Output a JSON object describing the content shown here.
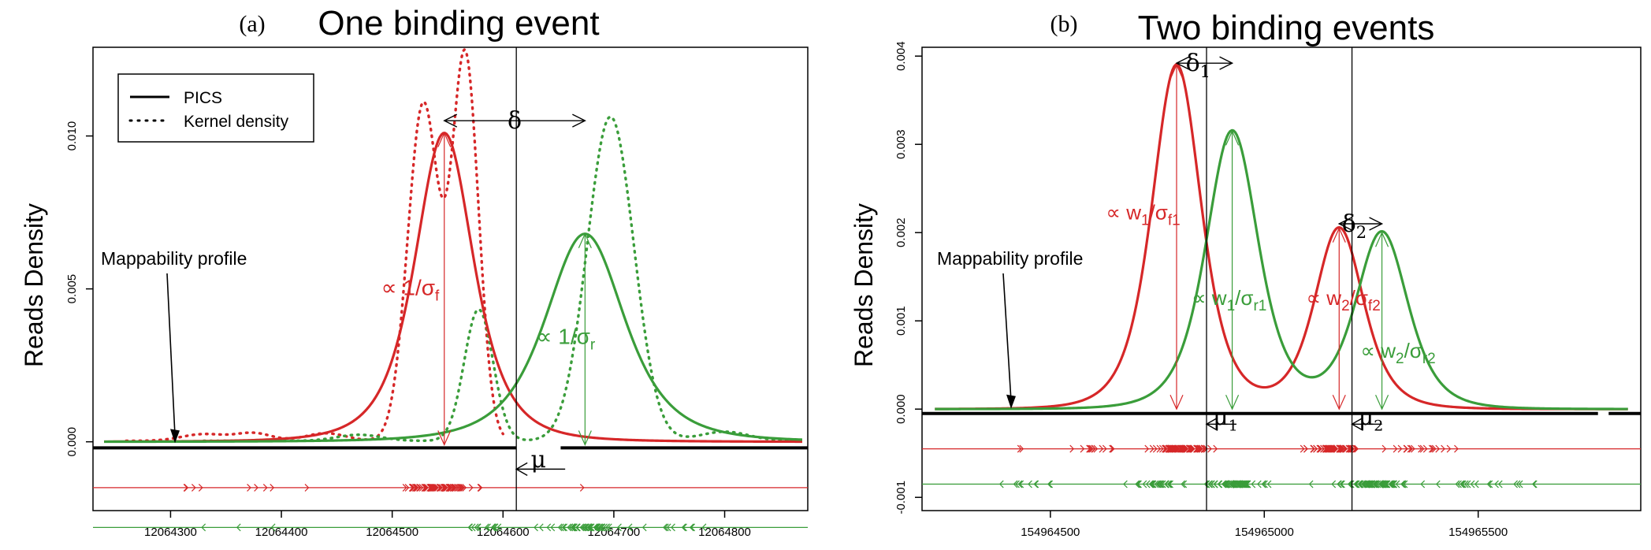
{
  "colors": {
    "forward": "#d62728",
    "reverse": "#3a9d3a",
    "axis": "#000000"
  },
  "chart_data": [
    {
      "type": "line",
      "panel_label": "(a)",
      "title": "One binding event",
      "ylabel": "Reads Density",
      "xlim": [
        12064230,
        12064875
      ],
      "ylim": [
        -0.00225,
        0.0129
      ],
      "xticks": [
        12064300,
        12064400,
        12064500,
        12064600,
        12064700,
        12064800
      ],
      "xtick_labels": [
        "12064300",
        "12064400",
        "12064500",
        "12064600",
        "12064700",
        "12064800"
      ],
      "yticks": [
        0.0,
        0.005,
        0.01
      ],
      "ytick_labels": [
        "0.000",
        "0.005",
        "0.010"
      ],
      "legend": {
        "position": "top-left",
        "entries": [
          {
            "label": "PICS",
            "style": "solid"
          },
          {
            "label": "Kernel density",
            "style": "dotted"
          }
        ]
      },
      "mu": 12064612,
      "pics_forward": {
        "x0": 12064240,
        "x1": 12064870,
        "components": [
          {
            "mu": 12064547,
            "peak": 0.0101,
            "scale": 28,
            "nu": 3
          }
        ]
      },
      "pics_reverse": {
        "x0": 12064240,
        "x1": 12064870,
        "components": [
          {
            "mu": 12064674,
            "peak": 0.0068,
            "scale": 38,
            "nu": 3
          }
        ]
      },
      "kernel_forward": {
        "x0": 12064260,
        "x1": 12064600,
        "bumps": [
          {
            "mu": 12064528,
            "peak": 0.011,
            "sd": 14
          },
          {
            "mu": 12064566,
            "peak": 0.0125,
            "sd": 12
          },
          {
            "mu": 12064330,
            "peak": 0.00022,
            "sd": 20
          },
          {
            "mu": 12064375,
            "peak": 0.00025,
            "sd": 16
          },
          {
            "mu": 12064440,
            "peak": 0.00025,
            "sd": 18
          }
        ]
      },
      "kernel_reverse": {
        "x0": 12064330,
        "x1": 12064870,
        "bumps": [
          {
            "mu": 12064578,
            "peak": 0.0043,
            "sd": 13
          },
          {
            "mu": 12064697,
            "peak": 0.0106,
            "sd": 21
          },
          {
            "mu": 12064470,
            "peak": 0.0002,
            "sd": 20
          },
          {
            "mu": 12064800,
            "peak": 0.0003,
            "sd": 22
          }
        ]
      },
      "mappability": {
        "y": -0.0002,
        "segments": [
          [
            12064230,
            12064612
          ],
          [
            12064652,
            12064875
          ]
        ],
        "label": "Mappability profile"
      },
      "forward_reads": {
        "y": -0.0015,
        "clusters": [
          {
            "center": 12064320,
            "spread": 22,
            "n": 4
          },
          {
            "center": 12064400,
            "spread": 28,
            "n": 5
          },
          {
            "center": 12064540,
            "spread": 28,
            "n": 70
          },
          {
            "center": 12064670,
            "spread": 4,
            "n": 1
          }
        ]
      },
      "reverse_reads": {
        "y": -0.0028,
        "clusters": [
          {
            "center": 12064360,
            "spread": 40,
            "n": 3
          },
          {
            "center": 12064585,
            "spread": 22,
            "n": 14
          },
          {
            "center": 12064675,
            "spread": 32,
            "n": 55
          },
          {
            "center": 12064760,
            "spread": 28,
            "n": 10
          }
        ]
      },
      "arrows": [
        {
          "x": 12064547,
          "from": 0.0101,
          "to": -0.0001,
          "color": "forward"
        },
        {
          "x": 12064674,
          "from": 0.0068,
          "to": -0.0001,
          "color": "reverse"
        }
      ],
      "delta": {
        "label": "δ",
        "from": 12064547,
        "to": 12064674,
        "y": 0.0105
      },
      "annotations": [
        {
          "text": "∝ 1/σ",
          "sub": "f",
          "x": 12064490,
          "y": 0.0048,
          "color": "forward",
          "class": "ann"
        },
        {
          "text": "∝ 1/σ",
          "sub": "r",
          "x": 12064630,
          "y": 0.0032,
          "color": "reverse",
          "class": "ann"
        },
        {
          "text": "μ",
          "x": 12064625,
          "y": -0.00085,
          "color": "axis",
          "class": "greek"
        }
      ]
    },
    {
      "type": "line",
      "panel_label": "(b)",
      "title": "Two binding events",
      "ylabel": "Reads Density",
      "xlim": [
        154964200,
        154965880
      ],
      "ylim": [
        -0.00115,
        0.0041
      ],
      "xticks": [
        154964500,
        154965000,
        154965500
      ],
      "xtick_labels": [
        "154964500",
        "154965000",
        "154965500"
      ],
      "yticks": [
        -0.001,
        0.0,
        0.001,
        0.002,
        0.003,
        0.004
      ],
      "ytick_labels": [
        "-0.001",
        "0.000",
        "0.001",
        "0.002",
        "0.003",
        "0.004"
      ],
      "mu": [
        154964865,
        154965205
      ],
      "pics_forward": {
        "x0": 154964230,
        "x1": 154965850,
        "components": [
          {
            "mu": 154964795,
            "peak": 0.0039,
            "scale": 60,
            "nu": 4
          },
          {
            "mu": 154965175,
            "peak": 0.00205,
            "scale": 60,
            "nu": 4
          }
        ]
      },
      "pics_reverse": {
        "x0": 154964230,
        "x1": 154965850,
        "components": [
          {
            "mu": 154964925,
            "peak": 0.00315,
            "scale": 64,
            "nu": 4
          },
          {
            "mu": 154965275,
            "peak": 0.002,
            "scale": 64,
            "nu": 4
          }
        ]
      },
      "mappability": {
        "y": -5e-05,
        "segments": [
          [
            154964200,
            154965780
          ],
          [
            154965805,
            154965880
          ]
        ],
        "label": "Mappability profile"
      },
      "forward_reads": {
        "y": -0.00045,
        "clusters": [
          {
            "center": 154964450,
            "spread": 30,
            "n": 2
          },
          {
            "center": 154964640,
            "spread": 80,
            "n": 16
          },
          {
            "center": 154964810,
            "spread": 55,
            "n": 90
          },
          {
            "center": 154965170,
            "spread": 55,
            "n": 70
          },
          {
            "center": 154965380,
            "spread": 100,
            "n": 18
          }
        ]
      },
      "reverse_reads": {
        "y": -0.00085,
        "clusters": [
          {
            "center": 154964450,
            "spread": 60,
            "n": 10
          },
          {
            "center": 154964740,
            "spread": 60,
            "n": 30
          },
          {
            "center": 154964930,
            "spread": 60,
            "n": 80
          },
          {
            "center": 154965250,
            "spread": 70,
            "n": 80
          },
          {
            "center": 154965500,
            "spread": 110,
            "n": 20
          }
        ]
      },
      "arrows": [
        {
          "x": 154964795,
          "from": 0.0039,
          "to": 0.0,
          "color": "forward"
        },
        {
          "x": 154964925,
          "from": 0.00315,
          "to": 0.0,
          "color": "reverse"
        },
        {
          "x": 154965175,
          "from": 0.00205,
          "to": 0.0,
          "color": "forward"
        },
        {
          "x": 154965275,
          "from": 0.002,
          "to": 0.0,
          "color": "reverse"
        }
      ],
      "deltas": [
        {
          "label": "δ",
          "sub": "1",
          "from": 154964795,
          "to": 154964925,
          "y": 0.00392
        },
        {
          "label": "δ",
          "sub": "2",
          "from": 154965175,
          "to": 154965275,
          "y": 0.0021
        }
      ],
      "annotations": [
        {
          "text": "∝ w",
          "sub": "1",
          "text2": "/σ",
          "sub2": "f1",
          "x": 154964630,
          "y": 0.00215,
          "color": "forward",
          "class": "ann-mid"
        },
        {
          "text": "∝ w",
          "sub": "1",
          "text2": "/σ",
          "sub2": "r1",
          "x": 154964830,
          "y": 0.00118,
          "color": "reverse",
          "class": "ann-mid"
        },
        {
          "text": "∝ w",
          "sub": "2",
          "text2": "/σ",
          "sub2": "f2",
          "x": 154965098,
          "y": 0.00118,
          "color": "forward",
          "class": "ann-mid"
        },
        {
          "text": "∝ w",
          "sub": "2",
          "text2": "/σ",
          "sub2": "r2",
          "x": 154965225,
          "y": 0.00058,
          "color": "reverse",
          "class": "ann-mid"
        },
        {
          "text": "μ",
          "sub": "1",
          "x": 154964880,
          "y": -0.00018,
          "color": "axis",
          "class": "greek"
        },
        {
          "text": "μ",
          "sub": "2",
          "x": 154965220,
          "y": -0.00018,
          "color": "axis",
          "class": "greek"
        }
      ]
    }
  ]
}
